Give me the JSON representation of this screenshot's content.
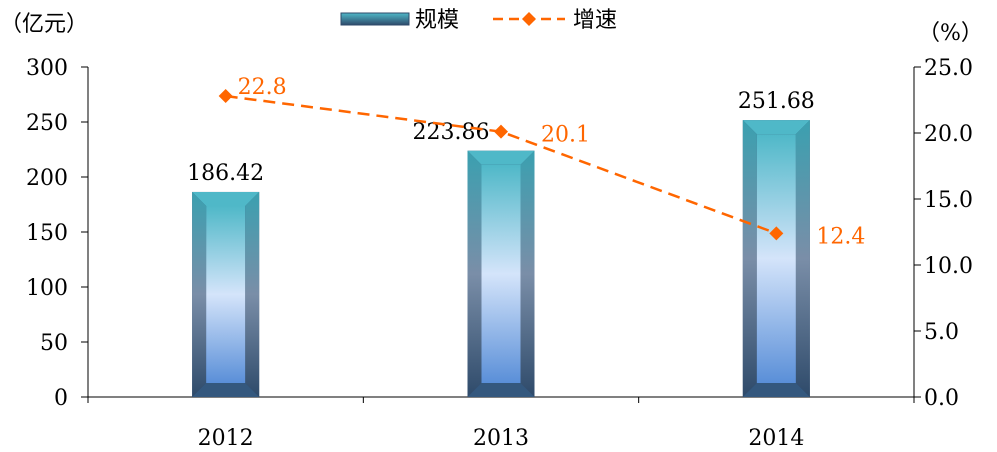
{
  "chart_data": {
    "type": "bar",
    "categories": [
      "2012",
      "2013",
      "2014"
    ],
    "series": [
      {
        "name": "规模",
        "type": "bar",
        "axis": "left",
        "values": [
          186.42,
          223.86,
          251.68
        ],
        "labels": [
          "186.42",
          "223.86",
          "251.68"
        ]
      },
      {
        "name": "增速",
        "type": "line",
        "axis": "right",
        "values": [
          22.8,
          20.1,
          12.4
        ],
        "labels": [
          "22.8",
          "20.1",
          "12.4"
        ]
      }
    ],
    "y_left": {
      "label": "（亿元）",
      "min": 0,
      "max": 300,
      "ticks": [
        "0",
        "50",
        "100",
        "150",
        "200",
        "250",
        "300"
      ]
    },
    "y_right": {
      "label": "（%）",
      "min": 0,
      "max": 25,
      "ticks": [
        "0.0",
        "5.0",
        "10.0",
        "15.0",
        "20.0",
        "25.0"
      ]
    },
    "legend_position": "top",
    "grid": false,
    "colors": {
      "line": "#ff6600",
      "bar_top": "#4fb8c8",
      "bar_mid": "#c8dcf8",
      "bar_bottom": "#5a8fd8",
      "bar_edge": "#2e4a6a"
    }
  }
}
